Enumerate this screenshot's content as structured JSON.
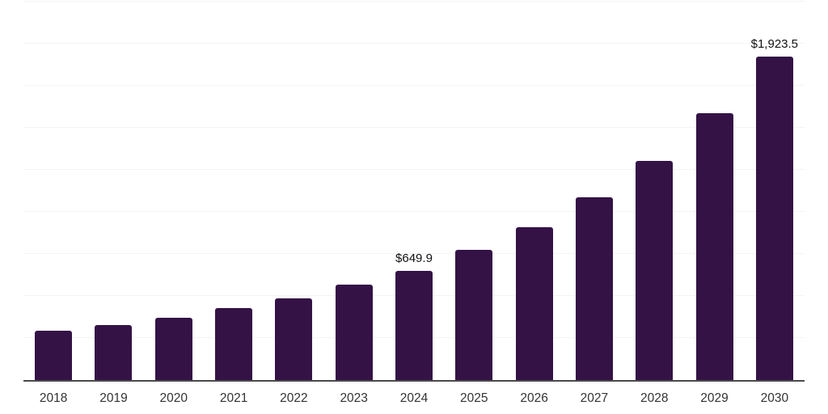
{
  "chart_data": {
    "type": "bar",
    "title": "",
    "xlabel": "",
    "ylabel": "",
    "ylim": [
      0,
      2250
    ],
    "gridline_step": 250,
    "grid": "horizontal",
    "legend": "none",
    "categories": [
      "2018",
      "2019",
      "2020",
      "2021",
      "2022",
      "2023",
      "2024",
      "2025",
      "2026",
      "2027",
      "2028",
      "2029",
      "2030"
    ],
    "values": [
      293.8,
      325.4,
      372.0,
      426.2,
      487.2,
      565.4,
      649.9,
      771.8,
      911.0,
      1087.2,
      1303.2,
      1586.4,
      1923.5
    ],
    "value_labels": [
      "",
      "",
      "",
      "",
      "",
      "",
      "$649.9",
      "",
      "",
      "",
      "",
      "",
      "$1,923.5"
    ]
  },
  "style": {
    "bar_color": "#341246",
    "grid_color": "#f4f4f4",
    "axis_color": "#4a4a4a",
    "tick_label_color": "#333333",
    "value_label_color": "#111111",
    "background": "#ffffff"
  }
}
